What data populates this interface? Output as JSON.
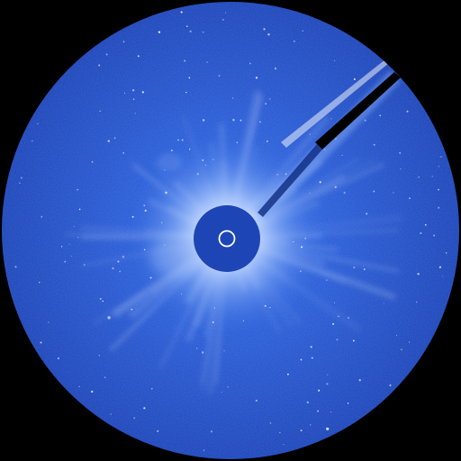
{
  "image": {
    "subject": "coronagraph-view",
    "colors": {
      "background": "#000000",
      "field_dark": "#1640b8",
      "field_mid": "#2358d6",
      "field_light": "#3f78ee",
      "corona_white": "#ffffff",
      "corona_glow": "#a9c8ff",
      "occulter_disk": "#1d45b5",
      "sun_marker": "#ffffff",
      "pylon": "#000000",
      "pylon_edge": "#6f98ee",
      "stars": "#dfe9ff"
    },
    "elements": [
      "occulter-disk",
      "sun-position-circle",
      "occulter-pylon",
      "corona-streamers",
      "star-field"
    ]
  }
}
